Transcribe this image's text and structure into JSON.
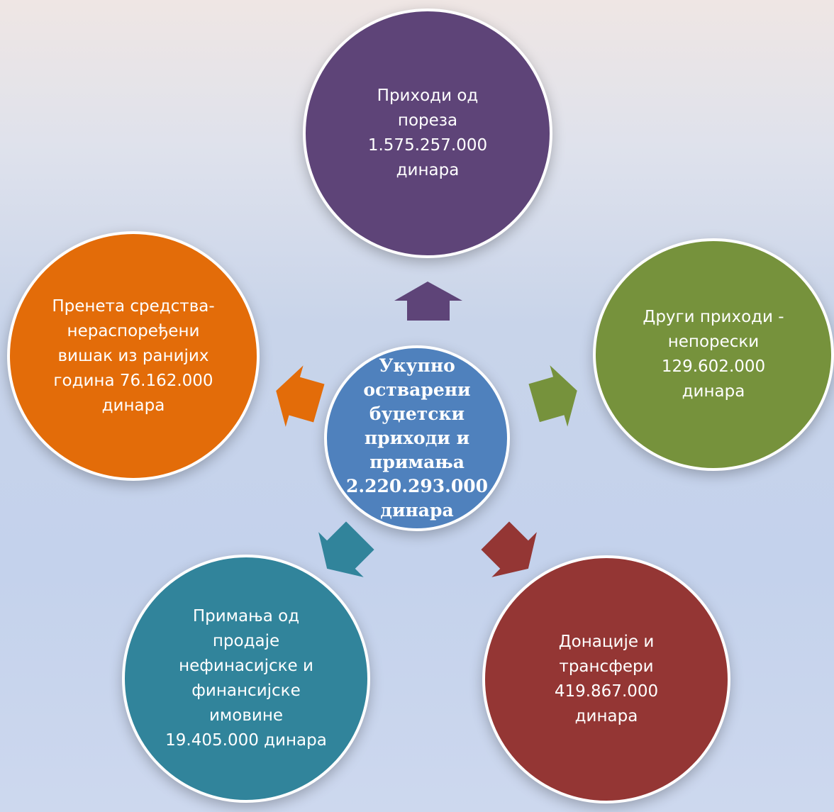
{
  "center": {
    "text": "Укупно\nостварени\nбуџетски\nприходи  и\nпримања\n2.220.293.000\nдинара",
    "color": "#4f81bd"
  },
  "nodes": [
    {
      "id": "top",
      "text": "Приходи од\nпореза\n1.575.257.000\nдинара",
      "color": "#5e4478"
    },
    {
      "id": "right",
      "text": "Други приходи -\nнепорески\n129.602.000\nдинара",
      "color": "#76923c"
    },
    {
      "id": "br",
      "text": "Донације и\nтрансфери\n419.867.000\nдинара",
      "color": "#943634"
    },
    {
      "id": "bl",
      "text": "Примања од\nпродаје\nнефинасијске и\nфинансијске\nимовине\n19.405.000 динара",
      "color": "#31849b"
    },
    {
      "id": "left",
      "text": "Пренета средства-\nнераспоређени\nвишак из ранијих\nгодина 76.162.000\nдинара",
      "color": "#e36c09"
    }
  ]
}
